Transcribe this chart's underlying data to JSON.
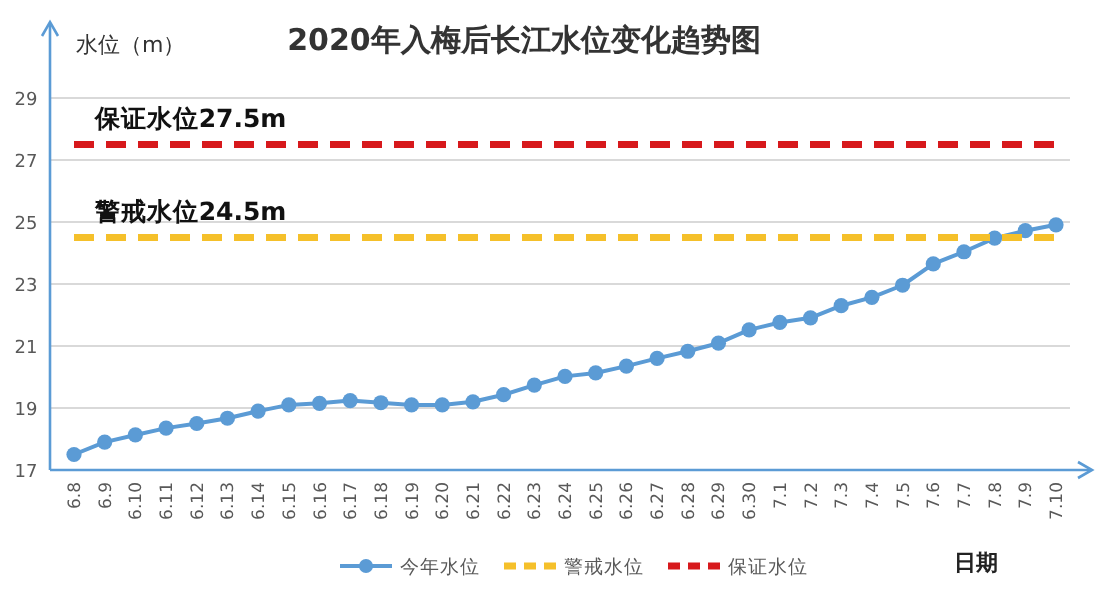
{
  "chart_data": {
    "type": "line",
    "title": "2020年入梅后长江水位变化趋势图",
    "ylabel": "水位（m）",
    "xlabel": "日期",
    "categories": [
      "6.8",
      "6.9",
      "6.10",
      "6.11",
      "6.12",
      "6.13",
      "6.14",
      "6.15",
      "6.16",
      "6.17",
      "6.18",
      "6.19",
      "6.20",
      "6.21",
      "6.22",
      "6.23",
      "6.24",
      "6.25",
      "6.26",
      "6.27",
      "6.28",
      "6.29",
      "6.30",
      "7.1",
      "7.2",
      "7.3",
      "7.4",
      "7.5",
      "7.6",
      "7.7",
      "7.8",
      "7.9",
      "7.10"
    ],
    "series": [
      {
        "name": "今年水位",
        "color": "#5b9bd5",
        "marker": "circle",
        "line_style": "solid",
        "values": [
          17.5,
          17.9,
          18.13,
          18.35,
          18.5,
          18.67,
          18.9,
          19.1,
          19.15,
          19.24,
          19.17,
          19.1,
          19.1,
          19.2,
          19.43,
          19.74,
          20.02,
          20.13,
          20.35,
          20.6,
          20.83,
          21.09,
          21.52,
          21.76,
          21.91,
          22.3,
          22.57,
          22.96,
          23.65,
          24.04,
          24.48,
          24.72,
          24.91
        ]
      },
      {
        "name": "警戒水位",
        "color": "#f5c02a",
        "marker": "none",
        "line_style": "dashed",
        "values": [
          24.5,
          24.5,
          24.5,
          24.5,
          24.5,
          24.5,
          24.5,
          24.5,
          24.5,
          24.5,
          24.5,
          24.5,
          24.5,
          24.5,
          24.5,
          24.5,
          24.5,
          24.5,
          24.5,
          24.5,
          24.5,
          24.5,
          24.5,
          24.5,
          24.5,
          24.5,
          24.5,
          24.5,
          24.5,
          24.5,
          24.5,
          24.5,
          24.5
        ]
      },
      {
        "name": "保证水位",
        "color": "#d7191c",
        "marker": "none",
        "line_style": "dashed",
        "values": [
          27.5,
          27.5,
          27.5,
          27.5,
          27.5,
          27.5,
          27.5,
          27.5,
          27.5,
          27.5,
          27.5,
          27.5,
          27.5,
          27.5,
          27.5,
          27.5,
          27.5,
          27.5,
          27.5,
          27.5,
          27.5,
          27.5,
          27.5,
          27.5,
          27.5,
          27.5,
          27.5,
          27.5,
          27.5,
          27.5,
          27.5,
          27.5,
          27.5
        ]
      }
    ],
    "annotations": [
      {
        "text": "保证水位27.5m",
        "x": "6.9",
        "y": 27.5
      },
      {
        "text": "警戒水位24.5m",
        "x": "6.9",
        "y": 24.5
      }
    ],
    "ylim": [
      17,
      29
    ],
    "yticks": [
      17,
      19,
      21,
      23,
      25,
      27,
      29
    ],
    "grid": "y",
    "legend": "bottom"
  }
}
